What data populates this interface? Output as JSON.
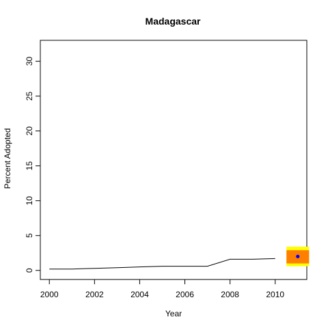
{
  "chart_data": {
    "type": "line",
    "title": "Madagascar",
    "xlabel": "Year",
    "ylabel": "Percent Adopted",
    "xlim": [
      1999.6,
      2011.4
    ],
    "ylim": [
      -1.3,
      33.0
    ],
    "x_ticks": [
      2000,
      2002,
      2004,
      2006,
      2008,
      2010
    ],
    "y_ticks": [
      0,
      5,
      10,
      15,
      20,
      25,
      30
    ],
    "grid": false,
    "legend": "none",
    "series": [
      {
        "x": [
          2000,
          2001,
          2002,
          2003,
          2004,
          2005,
          2006,
          2007,
          2008,
          2009,
          2010
        ],
        "y": [
          0.2,
          0.2,
          0.3,
          0.4,
          0.5,
          0.6,
          0.6,
          0.6,
          1.6,
          1.6,
          1.7
        ],
        "color": "#000000"
      }
    ],
    "projection": {
      "x": 2011,
      "estimate": 2.0,
      "inner_band": [
        1.0,
        2.9
      ],
      "outer_band": [
        0.6,
        3.4
      ],
      "x_span": [
        2010.5,
        2011.5
      ],
      "inner_color": "#FF7F00",
      "outer_color": "#FFFF00",
      "point_color": "#0000FF"
    }
  }
}
